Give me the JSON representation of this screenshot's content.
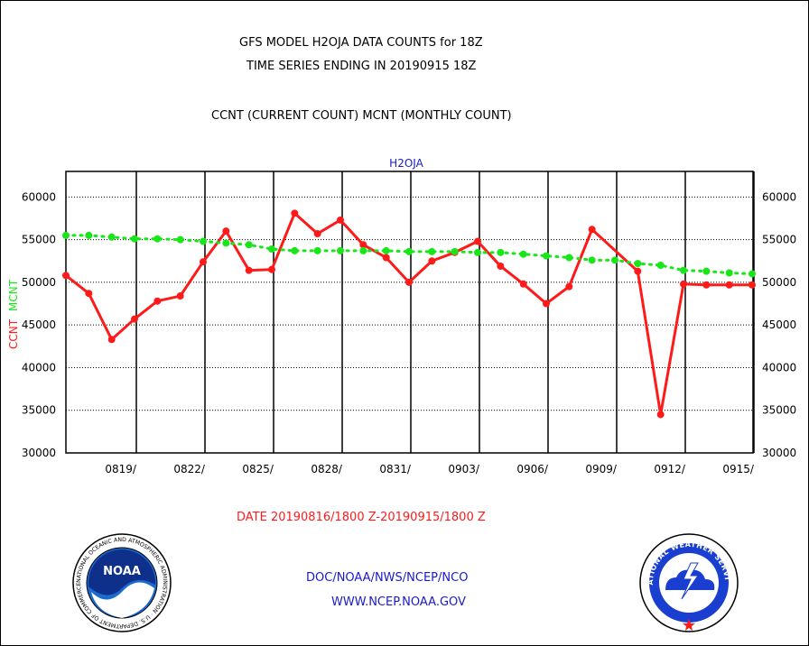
{
  "header": {
    "line1": "GFS MODEL H2OJA DATA COUNTS for 18Z",
    "line2": "TIME SERIES ENDING IN 20190915 18Z",
    "line3": "CCNT (CURRENT COUNT) MCNT (MONTHLY COUNT)"
  },
  "footer": {
    "date_range": "DATE 20190816/1800 Z-20190915/1800 Z",
    "org": "DOC/NOAA/NWS/NCEP/NCO",
    "url": "WWW.NCEP.NOAA.GOV"
  },
  "logos": {
    "noaa_text": "NOAA",
    "noaa_ring": "NATIONAL OCEANIC AND ATMOSPHERIC ADMINISTRATION · U.S. DEPARTMENT OF COMMERCE",
    "nws_ring": "NATIONAL WEATHER SERVICE"
  },
  "colors": {
    "ccnt": "#ff1a1a",
    "mcnt": "#19e619",
    "title_blue": "#1a1ac8",
    "grid": "#000000"
  },
  "chart_data": {
    "type": "line",
    "title": "H2OJA",
    "ylabel_ccnt": "CCNT",
    "ylabel_mcnt": "MCNT",
    "x": [
      "0816",
      "0817",
      "0818",
      "0819",
      "0820",
      "0821",
      "0822",
      "0823",
      "0824",
      "0825",
      "0826",
      "0827",
      "0828",
      "0829",
      "0830",
      "0831",
      "0901",
      "0902",
      "0903",
      "0904",
      "0905",
      "0906",
      "0907",
      "0908",
      "0909",
      "0910",
      "0911",
      "0912",
      "0913",
      "0914",
      "0915"
    ],
    "x_ticks": [
      "0819/",
      "0822/",
      "0825/",
      "0828/",
      "0831/",
      "0903/",
      "0906/",
      "0909/",
      "0912/",
      "0915/"
    ],
    "x_tick_indices": [
      3,
      6,
      9,
      12,
      15,
      18,
      21,
      24,
      27,
      30
    ],
    "y_ticks": [
      "30000",
      "35000",
      "40000",
      "45000",
      "50000",
      "55000",
      "60000"
    ],
    "ylim": [
      30000,
      63000
    ],
    "grid": true,
    "series": [
      {
        "name": "CCNT",
        "style": "solid",
        "values": [
          50800,
          48700,
          43300,
          45700,
          47800,
          48400,
          52400,
          56000,
          51400,
          51500,
          58100,
          55700,
          57300,
          54400,
          52900,
          50000,
          52500,
          53500,
          54800,
          51900,
          49800,
          47500,
          49500,
          56200,
          null,
          51300,
          34500,
          49800,
          49700,
          49700,
          49700
        ]
      },
      {
        "name": "MCNT",
        "style": "dotted",
        "values": [
          55500,
          55500,
          55300,
          55100,
          55100,
          55000,
          54800,
          54600,
          54400,
          53900,
          53700,
          53700,
          53700,
          53700,
          53700,
          53600,
          53600,
          53600,
          53500,
          53500,
          53300,
          53100,
          52900,
          52600,
          52600,
          52200,
          52000,
          51400,
          51300,
          51100,
          51000
        ]
      }
    ]
  }
}
